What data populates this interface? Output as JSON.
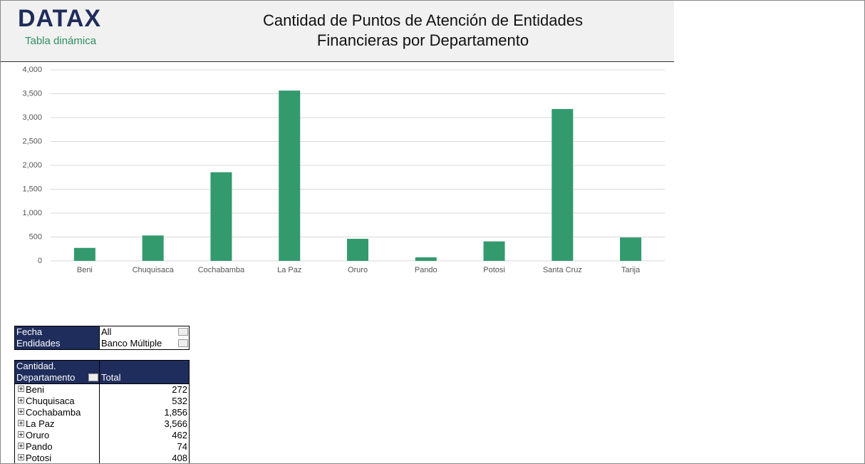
{
  "header": {
    "logo": "DATAX",
    "subtitle": "Tabla dinámica",
    "title_lines": [
      "Cantidad de Puntos de Atención de Entidades",
      "Financieras por Departamento"
    ]
  },
  "chart_data": {
    "type": "bar",
    "categories": [
      "Beni",
      "Chuquisaca",
      "Cochabamba",
      "La Paz",
      "Oruro",
      "Pando",
      "Potosi",
      "Santa Cruz",
      "Tarija"
    ],
    "values": [
      272,
      532,
      1856,
      3566,
      462,
      74,
      408,
      3180,
      490
    ],
    "color": "#339a6e",
    "ylim": [
      0,
      4000
    ],
    "yticks": [
      0,
      500,
      {
        "value": 1000,
        "label": "1,000"
      },
      {
        "value": 1500,
        "label": "1,500"
      },
      {
        "value": 2000,
        "label": "2,000"
      },
      {
        "value": 2500,
        "label": "2,500"
      },
      {
        "value": 3000,
        "label": "3,000"
      },
      {
        "value": 3500,
        "label": "3,500"
      },
      {
        "value": 4000,
        "label": "4,000"
      }
    ],
    "grid": true
  },
  "filters": [
    [
      "Fecha",
      "All"
    ],
    [
      "Endidades",
      "Banco Múltiple"
    ]
  ],
  "pivot": {
    "corner": "Cantidad.",
    "row_label": "Departamento",
    "value_label": "Total",
    "rows": [
      [
        "Beni",
        "272"
      ],
      [
        "Chuquisaca",
        "532"
      ],
      [
        "Cochabamba",
        "1,856"
      ],
      [
        "La Paz",
        "3,566"
      ],
      [
        "Oruro",
        "462"
      ],
      [
        "Pando",
        "74"
      ],
      [
        "Potosi",
        "408"
      ]
    ]
  }
}
